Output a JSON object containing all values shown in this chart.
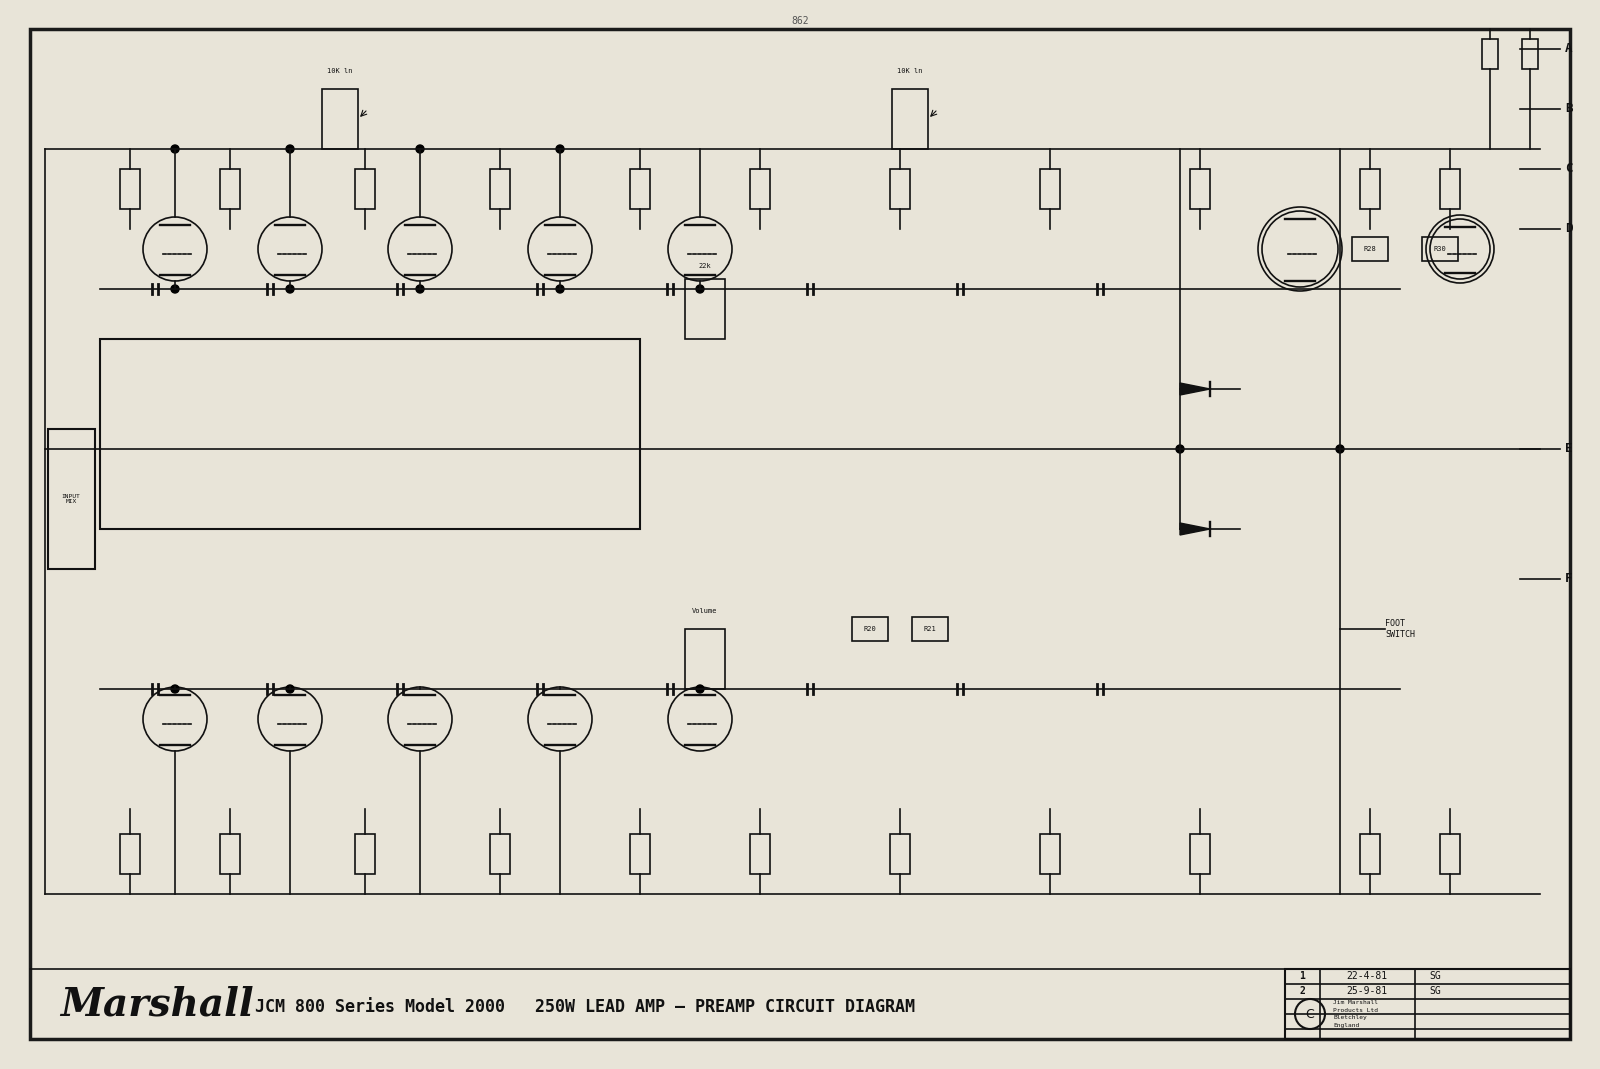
{
  "bg_color": "#e8e4d8",
  "border_color": "#1a1a1a",
  "title_text_1": "Marshall",
  "title_text_2": "JCM 800 Series Model 2000   250W LEAD AMP – PREAMP CIRCUIT DIAGRAM",
  "revision_rows": [
    {
      "num": "1",
      "date": "22-4-81",
      "by": "SG"
    },
    {
      "num": "2",
      "date": "25-9-81",
      "by": "SG"
    },
    {
      "num": "",
      "date": "",
      "by": ""
    },
    {
      "num": "",
      "date": "",
      "by": ""
    }
  ],
  "copyright_text": "Jim Marshall\nProducts Ltd\nBletchley\nEngland",
  "connection_labels": [
    "A",
    "B",
    "C",
    "D",
    "E",
    "F"
  ],
  "fig_width": 16.0,
  "fig_height": 10.69
}
